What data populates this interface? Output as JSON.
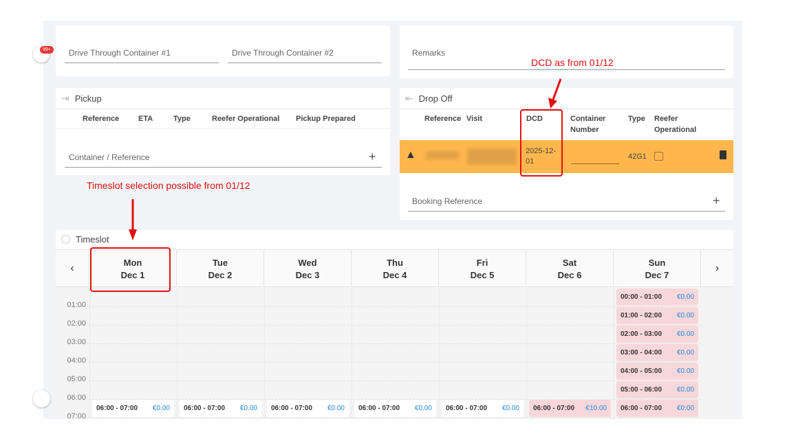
{
  "notifications": {
    "badge": "99+"
  },
  "drive_through": {
    "container1_placeholder": "Drive Through Container #1",
    "container2_placeholder": "Drive Through Container #2"
  },
  "remarks": {
    "placeholder": "Remarks"
  },
  "pickup": {
    "title": "Pickup",
    "columns": [
      "Reference",
      "ETA",
      "Type",
      "Reefer Operational",
      "Pickup Prepared"
    ],
    "input_placeholder": "Container / Reference"
  },
  "dropoff": {
    "title": "Drop Off",
    "columns": [
      "Reference",
      "Visit",
      "DCD",
      "Container Number",
      "Type",
      "Reefer Operational"
    ],
    "row": {
      "reference": "",
      "visit": "",
      "dcd": "2025-12-01",
      "container_number": "",
      "type": "42G1",
      "reefer_operational": false,
      "status": "warning",
      "highlight_color": "#ffb74d"
    },
    "input_placeholder": "Booking Reference"
  },
  "timeslot": {
    "title": "Timeslot",
    "days": [
      {
        "dow": "Mon",
        "date": "Dec 1"
      },
      {
        "dow": "Tue",
        "date": "Dec 2"
      },
      {
        "dow": "Wed",
        "date": "Dec 3"
      },
      {
        "dow": "Thu",
        "date": "Dec 4"
      },
      {
        "dow": "Fri",
        "date": "Dec 5"
      },
      {
        "dow": "Sat",
        "date": "Dec 6"
      },
      {
        "dow": "Sun",
        "date": "Dec 7"
      }
    ],
    "hours": [
      "01:00",
      "02:00",
      "03:00",
      "04:00",
      "05:00",
      "06:00",
      "07:00"
    ],
    "slots": [
      {
        "day": 0,
        "start": 6,
        "label": "06:00 - 07:00",
        "price": "€0.00",
        "state": "available"
      },
      {
        "day": 1,
        "start": 6,
        "label": "06:00 - 07:00",
        "price": "€0.00",
        "state": "available"
      },
      {
        "day": 2,
        "start": 6,
        "label": "06:00 - 07:00",
        "price": "€0.00",
        "state": "available"
      },
      {
        "day": 3,
        "start": 6,
        "label": "06:00 - 07:00",
        "price": "€0.00",
        "state": "available"
      },
      {
        "day": 4,
        "start": 6,
        "label": "06:00 - 07:00",
        "price": "€0.00",
        "state": "available"
      },
      {
        "day": 5,
        "start": 6,
        "label": "06:00 - 07:00",
        "price": "€10.00",
        "state": "unavailable"
      },
      {
        "day": 6,
        "start": 0,
        "label": "00:00 - 01:00",
        "price": "€0.00",
        "state": "unavailable"
      },
      {
        "day": 6,
        "start": 1,
        "label": "01:00 - 02:00",
        "price": "€0.00",
        "state": "unavailable"
      },
      {
        "day": 6,
        "start": 2,
        "label": "02:00 - 03:00",
        "price": "€0.00",
        "state": "unavailable"
      },
      {
        "day": 6,
        "start": 3,
        "label": "03:00 - 04:00",
        "price": "€0.00",
        "state": "unavailable"
      },
      {
        "day": 6,
        "start": 4,
        "label": "04:00 - 05:00",
        "price": "€0.00",
        "state": "unavailable"
      },
      {
        "day": 6,
        "start": 5,
        "label": "05:00 - 06:00",
        "price": "€0.00",
        "state": "unavailable"
      },
      {
        "day": 6,
        "start": 6,
        "label": "06:00 - 07:00",
        "price": "€0.00",
        "state": "unavailable"
      }
    ]
  },
  "annotations": {
    "dcd": "DCD as from 01/12",
    "timeslot": "Timeslot selection possible from 01/12",
    "color": "#e31010"
  }
}
